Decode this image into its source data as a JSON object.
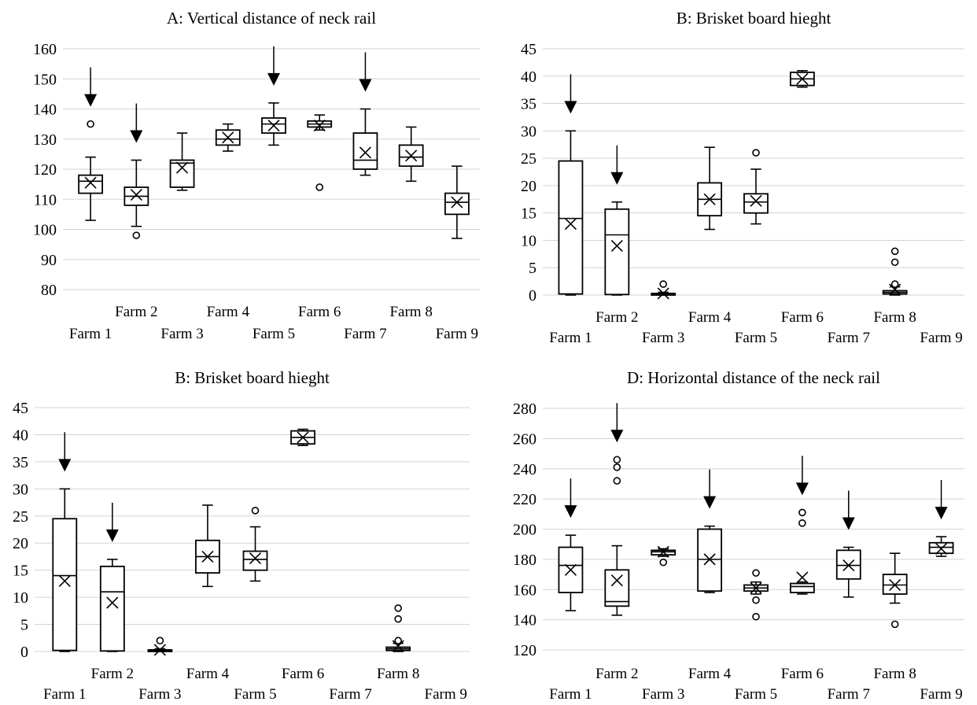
{
  "chart_data": [
    {
      "type": "box",
      "title": "A: Vertical distance of neck rail",
      "categories": [
        "Farm 1",
        "Farm 2",
        "Farm 3",
        "Farm 4",
        "Farm 5",
        "Farm 6",
        "Farm 7",
        "Farm 8",
        "Farm 9"
      ],
      "ylim": [
        80,
        160
      ],
      "yticks": [
        80,
        90,
        100,
        110,
        120,
        130,
        140,
        150,
        160
      ],
      "grid": true,
      "arrows": [
        "Farm 1",
        "Farm 2",
        "Farm 5",
        "Farm 7"
      ],
      "boxes": [
        {
          "min": 103,
          "q1": 112,
          "median": 116,
          "q3": 118,
          "max": 124,
          "mean": 115.5,
          "outliers": [
            135
          ]
        },
        {
          "min": 101,
          "q1": 108,
          "median": 111,
          "q3": 114,
          "max": 123,
          "mean": 111.5,
          "outliers": [
            98
          ]
        },
        {
          "min": 113,
          "q1": 114,
          "median": 122,
          "q3": 123,
          "max": 132,
          "mean": 120.5,
          "outliers": []
        },
        {
          "min": 126,
          "q1": 128,
          "median": 130,
          "q3": 133,
          "max": 135,
          "mean": 130.5,
          "outliers": []
        },
        {
          "min": 128,
          "q1": 132,
          "median": 135,
          "q3": 137,
          "max": 142,
          "mean": 134.5,
          "outliers": []
        },
        {
          "min": 133,
          "q1": 134,
          "median": 135,
          "q3": 136,
          "max": 138,
          "mean": 134.5,
          "outliers": [
            114
          ]
        },
        {
          "min": 118,
          "q1": 120,
          "median": 123,
          "q3": 132,
          "max": 140,
          "mean": 125.5,
          "outliers": []
        },
        {
          "min": 116,
          "q1": 121,
          "median": 124,
          "q3": 128,
          "max": 134,
          "mean": 124.5,
          "outliers": []
        },
        {
          "min": 97,
          "q1": 105,
          "median": 109,
          "q3": 112,
          "max": 121,
          "mean": 109,
          "outliers": []
        }
      ]
    },
    {
      "type": "box",
      "title": "B: Brisket board hieght",
      "categories": [
        "Farm 1",
        "Farm 2",
        "Farm 3",
        "Farm 4",
        "Farm 5",
        "Farm 6",
        "Farm 7",
        "Farm 8",
        "Farm 9"
      ],
      "ylim": [
        0,
        45
      ],
      "yticks": [
        0,
        5,
        10,
        15,
        20,
        25,
        30,
        35,
        40,
        45
      ],
      "grid": true,
      "arrows": [
        "Farm 1",
        "Farm 2"
      ],
      "boxes": [
        {
          "min": 0,
          "q1": 0.2,
          "median": 14,
          "q3": 24.5,
          "max": 30,
          "mean": 13,
          "outliers": []
        },
        {
          "min": 0,
          "q1": 0.1,
          "median": 11,
          "q3": 15.7,
          "max": 17,
          "mean": 9,
          "outliers": []
        },
        {
          "min": 0,
          "q1": 0,
          "median": 0.1,
          "q3": 0.3,
          "max": 0.5,
          "mean": 0.3,
          "outliers": [
            2
          ]
        },
        {
          "min": 12,
          "q1": 14.5,
          "median": 17.5,
          "q3": 20.5,
          "max": 27,
          "mean": 17.5,
          "outliers": []
        },
        {
          "min": 13,
          "q1": 15,
          "median": 17,
          "q3": 18.5,
          "max": 23,
          "mean": 17.2,
          "outliers": [
            26
          ]
        },
        {
          "min": 38,
          "q1": 38.3,
          "median": 39.5,
          "q3": 40.7,
          "max": 41,
          "mean": 39.5,
          "outliers": []
        },
        null,
        {
          "min": 0,
          "q1": 0.2,
          "median": 0.5,
          "q3": 0.8,
          "max": 1.5,
          "mean": 1,
          "outliers": [
            2,
            6,
            8
          ]
        },
        null
      ]
    },
    {
      "type": "box",
      "title": "B: Brisket board hieght",
      "categories": [
        "Farm 1",
        "Farm 2",
        "Farm 3",
        "Farm 4",
        "Farm 5",
        "Farm 6",
        "Farm 7",
        "Farm 8",
        "Farm 9"
      ],
      "ylim": [
        0,
        45
      ],
      "yticks": [
        0,
        5,
        10,
        15,
        20,
        25,
        30,
        35,
        40,
        45
      ],
      "grid": true,
      "arrows": [
        "Farm 1",
        "Farm 2"
      ],
      "boxes": [
        {
          "min": 0,
          "q1": 0.2,
          "median": 14,
          "q3": 24.5,
          "max": 30,
          "mean": 13,
          "outliers": []
        },
        {
          "min": 0,
          "q1": 0.1,
          "median": 11,
          "q3": 15.7,
          "max": 17,
          "mean": 9,
          "outliers": []
        },
        {
          "min": 0,
          "q1": 0,
          "median": 0.1,
          "q3": 0.3,
          "max": 0.5,
          "mean": 0.3,
          "outliers": [
            2
          ]
        },
        {
          "min": 12,
          "q1": 14.5,
          "median": 17.5,
          "q3": 20.5,
          "max": 27,
          "mean": 17.5,
          "outliers": []
        },
        {
          "min": 13,
          "q1": 15,
          "median": 17,
          "q3": 18.5,
          "max": 23,
          "mean": 17.2,
          "outliers": [
            26
          ]
        },
        {
          "min": 38,
          "q1": 38.3,
          "median": 39.5,
          "q3": 40.7,
          "max": 41,
          "mean": 39.5,
          "outliers": []
        },
        null,
        {
          "min": 0,
          "q1": 0.2,
          "median": 0.5,
          "q3": 0.8,
          "max": 1.5,
          "mean": 1,
          "outliers": [
            2,
            6,
            8
          ]
        },
        null
      ]
    },
    {
      "type": "box",
      "title": "D: Horizontal distance of the neck rail",
      "categories": [
        "Farm 1",
        "Farm 2",
        "Farm 3",
        "Farm 4",
        "Farm 5",
        "Farm 6",
        "Farm 7",
        "Farm 8",
        "Farm 9"
      ],
      "ylim": [
        120,
        280
      ],
      "yticks": [
        120,
        140,
        160,
        180,
        200,
        220,
        240,
        260,
        280
      ],
      "grid": true,
      "arrows": [
        "Farm 1",
        "Farm 2",
        "Farm 4",
        "Farm 6",
        "Farm 7",
        "Farm 9"
      ],
      "boxes": [
        {
          "min": 146,
          "q1": 158,
          "median": 176,
          "q3": 188,
          "max": 196,
          "mean": 173,
          "outliers": []
        },
        {
          "min": 143,
          "q1": 149,
          "median": 152,
          "q3": 173,
          "max": 189,
          "mean": 166,
          "outliers": [
            232,
            241,
            246
          ]
        },
        {
          "min": 182,
          "q1": 183,
          "median": 185,
          "q3": 186,
          "max": 187,
          "mean": 185,
          "outliers": [
            178
          ]
        },
        {
          "min": 158,
          "q1": 159,
          "median": 180,
          "q3": 200,
          "max": 202,
          "mean": 180,
          "outliers": []
        },
        {
          "min": 157,
          "q1": 159,
          "median": 161,
          "q3": 163,
          "max": 165,
          "mean": 161,
          "outliers": [
            171,
            153,
            142
          ]
        },
        {
          "min": 157,
          "q1": 158,
          "median": 162,
          "q3": 164,
          "max": 165,
          "mean": 168,
          "outliers": [
            204,
            211
          ]
        },
        {
          "min": 155,
          "q1": 167,
          "median": 176,
          "q3": 186,
          "max": 188,
          "mean": 176,
          "outliers": []
        },
        {
          "min": 151,
          "q1": 157,
          "median": 163,
          "q3": 170,
          "max": 184,
          "mean": 163,
          "outliers": [
            137
          ]
        },
        {
          "min": 182,
          "q1": 184,
          "median": 188,
          "q3": 191,
          "max": 195,
          "mean": 187,
          "outliers": []
        }
      ]
    }
  ]
}
